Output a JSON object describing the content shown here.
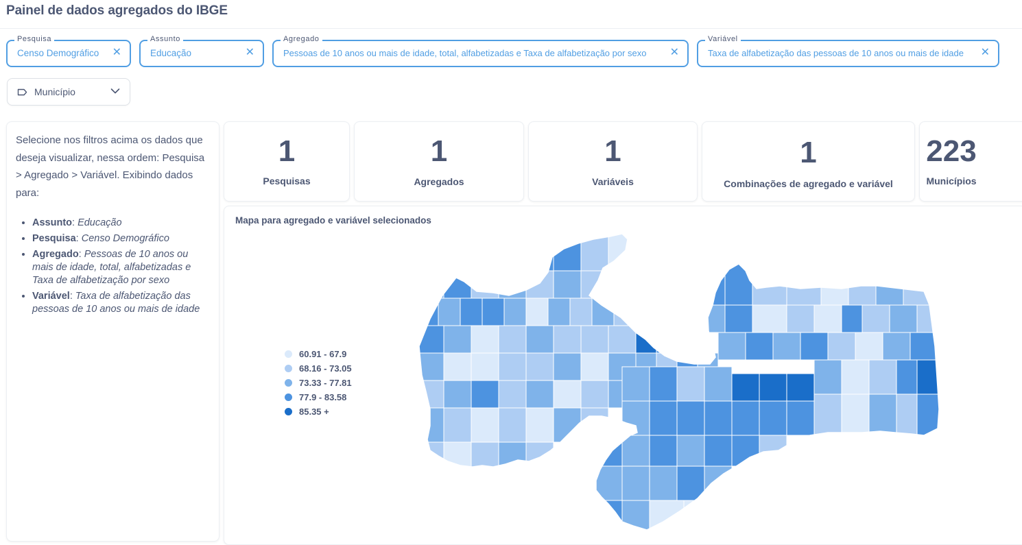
{
  "header": {
    "title": "Painel de dados agregados do IBGE"
  },
  "filters": {
    "pesquisa": {
      "label": "Pesquisa",
      "value": "Censo Demográfico"
    },
    "assunto": {
      "label": "Assunto",
      "value": "Educação"
    },
    "agregado": {
      "label": "Agregado",
      "value": "Pessoas de 10 anos ou mais de idade, total, alfabetizadas e Taxa de alfabetização por sexo"
    },
    "variavel": {
      "label": "Variável",
      "value": "Taxa de alfabetização das pessoas de 10 anos ou mais de idade"
    },
    "close_glyph": "✕",
    "municipio_select": {
      "label": "Município",
      "icon": "tag-icon"
    }
  },
  "sidebar": {
    "intro": "Selecione nos filtros acima os dados que deseja visualizar, nessa ordem: Pesquisa > Agregado > Variável. Exibindo dados para:",
    "items": [
      {
        "key": "Assunto",
        "value": "Educação"
      },
      {
        "key": "Pesquisa",
        "value": "Censo Demográfico"
      },
      {
        "key": "Agregado",
        "value": "Pessoas de 10 anos ou mais de idade, total, alfabetizadas e Taxa de alfabetização por sexo"
      },
      {
        "key": "Variável",
        "value": "Taxa de alfabetização das pessoas de 10 anos ou mais de idade"
      }
    ]
  },
  "kpis": [
    {
      "value": "1",
      "label": "Pesquisas"
    },
    {
      "value": "1",
      "label": "Agregados"
    },
    {
      "value": "1",
      "label": "Variáveis"
    },
    {
      "value": "1",
      "label": "Combinações de agregado e variável"
    },
    {
      "value": "223",
      "label": "Municípios"
    }
  ],
  "map": {
    "title": "Mapa para agregado e variável selecionados",
    "legend": [
      {
        "label": "60.91 - 67.9",
        "color": "#dbeafb"
      },
      {
        "label": "68.16 - 73.05",
        "color": "#aecdf3"
      },
      {
        "label": "73.33 - 77.81",
        "color": "#7fb3ea"
      },
      {
        "label": "77.9 - 83.58",
        "color": "#4d93e0"
      },
      {
        "label": "85.35 +",
        "color": "#1a6ec9"
      }
    ]
  },
  "colors": {
    "accent": "#509ee3",
    "text": "#4c5773",
    "border": "#eceff3"
  }
}
